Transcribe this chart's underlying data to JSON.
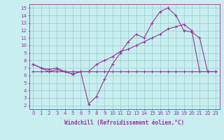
{
  "xlabel": "Windchill (Refroidissement éolien,°C)",
  "background_color": "#c8eef0",
  "grid_color": "#99cccc",
  "line_color": "#993399",
  "hours": [
    0,
    1,
    2,
    3,
    4,
    5,
    6,
    7,
    8,
    9,
    10,
    11,
    12,
    13,
    14,
    15,
    16,
    17,
    18,
    19,
    20,
    21,
    22,
    23
  ],
  "series1": [
    7.5,
    7.0,
    6.5,
    6.8,
    6.5,
    6.2,
    6.5,
    2.2,
    3.2,
    5.5,
    7.5,
    9.0,
    10.5,
    11.5,
    11.0,
    13.0,
    14.5,
    15.0,
    14.0,
    12.0,
    11.8,
    11.0,
    6.5,
    6.5
  ],
  "series2": [
    7.5,
    7.0,
    6.8,
    7.0,
    6.5,
    6.2,
    6.5,
    6.5,
    7.5,
    8.0,
    8.5,
    9.2,
    9.5,
    10.0,
    10.5,
    11.0,
    11.5,
    12.2,
    12.5,
    12.8,
    12.0,
    6.5,
    6.5,
    6.5
  ],
  "series3": [
    6.5,
    6.5,
    6.5,
    6.5,
    6.5,
    6.5,
    6.5,
    6.5,
    6.5,
    6.5,
    6.5,
    6.5,
    6.5,
    6.5,
    6.5,
    6.5,
    6.5,
    6.5,
    6.5,
    6.5,
    6.5,
    6.5,
    6.5,
    6.5
  ],
  "ylim": [
    1.5,
    15.5
  ],
  "xlim": [
    -0.5,
    23.5
  ],
  "yticks": [
    2,
    3,
    4,
    5,
    6,
    7,
    8,
    9,
    10,
    11,
    12,
    13,
    14,
    15
  ],
  "xticks": [
    0,
    1,
    2,
    3,
    4,
    5,
    6,
    7,
    8,
    9,
    10,
    11,
    12,
    13,
    14,
    15,
    16,
    17,
    18,
    19,
    20,
    21,
    22,
    23
  ]
}
